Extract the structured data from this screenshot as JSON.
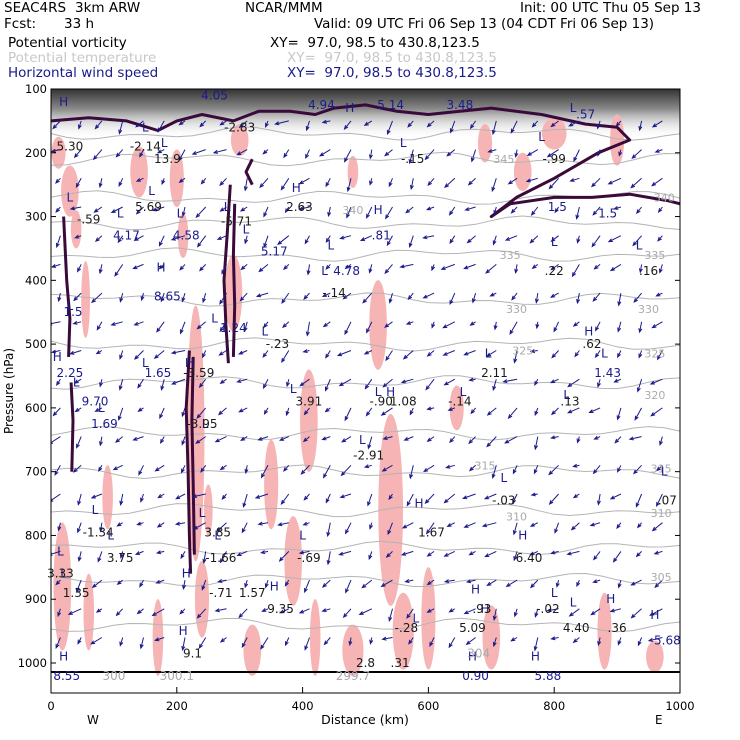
{
  "header": {
    "project": "SEAC4RS",
    "model": "3km ARW",
    "org": "NCAR/MMM",
    "init": "Init: 00 UTC Thu 05 Sep 13",
    "fcst_label": "Fcst:",
    "fcst_value": "33 h",
    "valid": "Valid: 09 UTC Fri 06 Sep 13 (04 CDT Fri 06 Sep 13)"
  },
  "fields": [
    {
      "name": "Potential vorticity",
      "xy": "XY=  97.0, 98.5 to 430.8,123.5",
      "color": "#000000"
    },
    {
      "name": "Potential temperature",
      "xy": "XY=  97.0, 98.5 to 430.8,123.5",
      "color": "#c8c8c8"
    },
    {
      "name": "Horizontal wind speed",
      "xy": "XY=  97.0, 98.5 to 430.8,123.5",
      "color": "#1a1a8c"
    }
  ],
  "chart_data": {
    "type": "cross-section",
    "xlabel": "Distance (km)",
    "ylabel": "Pressure (hPa)",
    "xlim": [
      0,
      1000
    ],
    "ylim": [
      1010,
      100
    ],
    "x_ticks": [
      "0",
      "200",
      "400",
      "600",
      "800",
      "1000"
    ],
    "y_ticks": [
      "100",
      "200",
      "300",
      "400",
      "500",
      "600",
      "700",
      "800",
      "900",
      "1000"
    ],
    "x_endpoints": {
      "left": "W",
      "right": "E"
    },
    "theta_labels": [
      {
        "text": "340",
        "x": 480,
        "p": 290
      },
      {
        "text": "335",
        "x": 730,
        "p": 360
      },
      {
        "text": "335",
        "x": 960,
        "p": 360
      },
      {
        "text": "330",
        "x": 740,
        "p": 445
      },
      {
        "text": "330",
        "x": 950,
        "p": 445
      },
      {
        "text": "325",
        "x": 750,
        "p": 510
      },
      {
        "text": "325",
        "x": 960,
        "p": 515
      },
      {
        "text": "320",
        "x": 960,
        "p": 580
      },
      {
        "text": "315",
        "x": 690,
        "p": 690
      },
      {
        "text": "315",
        "x": 970,
        "p": 695
      },
      {
        "text": "310",
        "x": 740,
        "p": 770
      },
      {
        "text": "310",
        "x": 970,
        "p": 765
      },
      {
        "text": "305",
        "x": 970,
        "p": 865
      },
      {
        "text": "345",
        "x": 720,
        "p": 210
      },
      {
        "text": "340",
        "x": 975,
        "p": 270
      }
    ],
    "hl_markers": [
      {
        "t": "H",
        "x": 20,
        "p": 120
      },
      {
        "t": "L",
        "x": 150,
        "p": 160
      },
      {
        "t": "L",
        "x": 180,
        "p": 185
      },
      {
        "t": "H",
        "x": 475,
        "p": 130
      },
      {
        "t": "L",
        "x": 560,
        "p": 185
      },
      {
        "t": "L",
        "x": 780,
        "p": 175
      },
      {
        "t": "L",
        "x": 830,
        "p": 130
      },
      {
        "t": "L",
        "x": 160,
        "p": 260
      },
      {
        "t": "L",
        "x": 30,
        "p": 270
      },
      {
        "t": "L",
        "x": 110,
        "p": 295
      },
      {
        "t": "L",
        "x": 205,
        "p": 295
      },
      {
        "t": "L",
        "x": 280,
        "p": 285
      },
      {
        "t": "H",
        "x": 390,
        "p": 255
      },
      {
        "t": "L",
        "x": 310,
        "p": 320
      },
      {
        "t": "H",
        "x": 520,
        "p": 290
      },
      {
        "t": "L",
        "x": 445,
        "p": 345
      },
      {
        "t": "L",
        "x": 435,
        "p": 385
      },
      {
        "t": "H",
        "x": 175,
        "p": 380
      },
      {
        "t": "L",
        "x": 30,
        "p": 440
      },
      {
        "t": "L",
        "x": 260,
        "p": 460
      },
      {
        "t": "L",
        "x": 340,
        "p": 480
      },
      {
        "t": "L",
        "x": 800,
        "p": 340
      },
      {
        "t": "L",
        "x": 935,
        "p": 345
      },
      {
        "t": "H",
        "x": 855,
        "p": 480
      },
      {
        "t": "L",
        "x": 880,
        "p": 515
      },
      {
        "t": "H",
        "x": 10,
        "p": 520
      },
      {
        "t": "L",
        "x": 150,
        "p": 530
      },
      {
        "t": "H",
        "x": 220,
        "p": 530
      },
      {
        "t": "L",
        "x": 40,
        "p": 560
      },
      {
        "t": "L",
        "x": 80,
        "p": 600
      },
      {
        "t": "L",
        "x": 385,
        "p": 570
      },
      {
        "t": "L",
        "x": 520,
        "p": 575
      },
      {
        "t": "H",
        "x": 540,
        "p": 575
      },
      {
        "t": "L",
        "x": 655,
        "p": 575
      },
      {
        "t": "L",
        "x": 695,
        "p": 515
      },
      {
        "t": "L",
        "x": 820,
        "p": 580
      },
      {
        "t": "L",
        "x": 245,
        "p": 625
      },
      {
        "t": "L",
        "x": 495,
        "p": 650
      },
      {
        "t": "L",
        "x": 720,
        "p": 710
      },
      {
        "t": "L",
        "x": 975,
        "p": 700
      },
      {
        "t": "L",
        "x": 70,
        "p": 760
      },
      {
        "t": "L",
        "x": 95,
        "p": 800
      },
      {
        "t": "L",
        "x": 240,
        "p": 765
      },
      {
        "t": "L",
        "x": 265,
        "p": 800
      },
      {
        "t": "L",
        "x": 400,
        "p": 800
      },
      {
        "t": "H",
        "x": 585,
        "p": 750
      },
      {
        "t": "H",
        "x": 750,
        "p": 800
      },
      {
        "t": "L",
        "x": 15,
        "p": 825
      },
      {
        "t": "L",
        "x": 20,
        "p": 860
      },
      {
        "t": "H",
        "x": 215,
        "p": 860
      },
      {
        "t": "H",
        "x": 355,
        "p": 880
      },
      {
        "t": "H",
        "x": 675,
        "p": 885
      },
      {
        "t": "H",
        "x": 690,
        "p": 915
      },
      {
        "t": "L",
        "x": 800,
        "p": 890
      },
      {
        "t": "L",
        "x": 830,
        "p": 905
      },
      {
        "t": "H",
        "x": 890,
        "p": 900
      },
      {
        "t": "H",
        "x": 960,
        "p": 925
      },
      {
        "t": "H",
        "x": 210,
        "p": 950
      },
      {
        "t": "L",
        "x": 580,
        "p": 930
      },
      {
        "t": "H",
        "x": 20,
        "p": 990
      },
      {
        "t": "H",
        "x": 670,
        "p": 990
      },
      {
        "t": "H",
        "x": 770,
        "p": 990
      }
    ],
    "value_labels": [
      {
        "t": "4.05",
        "x": 260,
        "p": 110,
        "c": "navy"
      },
      {
        "t": "4.94",
        "x": 430,
        "p": 125,
        "c": "navy"
      },
      {
        "t": "5.14",
        "x": 540,
        "p": 125,
        "c": "navy"
      },
      {
        "t": "3.48",
        "x": 650,
        "p": 125,
        "c": "navy"
      },
      {
        "t": ".57",
        "x": 850,
        "p": 140,
        "c": "navy"
      },
      {
        "t": "-2.83",
        "x": 300,
        "p": 160,
        "c": "black"
      },
      {
        "t": "5.30",
        "x": 30,
        "p": 190,
        "c": "black"
      },
      {
        "t": "-2.14",
        "x": 150,
        "p": 190,
        "c": "black"
      },
      {
        "t": "13.9",
        "x": 185,
        "p": 210,
        "c": "black"
      },
      {
        "t": "-.15",
        "x": 575,
        "p": 210,
        "c": "black"
      },
      {
        "t": "-.99",
        "x": 800,
        "p": 210,
        "c": "black"
      },
      {
        "t": "5.69",
        "x": 155,
        "p": 285,
        "c": "black"
      },
      {
        "t": "2.63",
        "x": 395,
        "p": 285,
        "c": "black"
      },
      {
        "t": "1.5",
        "x": 805,
        "p": 285,
        "c": "navy"
      },
      {
        "t": "1.5",
        "x": 885,
        "p": 295,
        "c": "navy"
      },
      {
        "t": "-.59",
        "x": 60,
        "p": 305,
        "c": "black"
      },
      {
        "t": "-5.71",
        "x": 295,
        "p": 308,
        "c": "black"
      },
      {
        "t": "4.17",
        "x": 120,
        "p": 330,
        "c": "navy"
      },
      {
        "t": "4.58",
        "x": 215,
        "p": 330,
        "c": "navy"
      },
      {
        "t": ".81",
        "x": 525,
        "p": 330,
        "c": "navy"
      },
      {
        "t": "5.17",
        "x": 355,
        "p": 355,
        "c": "navy"
      },
      {
        "t": "4.78",
        "x": 470,
        "p": 385,
        "c": "navy"
      },
      {
        "t": ".22",
        "x": 800,
        "p": 385,
        "c": "black"
      },
      {
        "t": ".16",
        "x": 950,
        "p": 385,
        "c": "black"
      },
      {
        "t": "-.14",
        "x": 450,
        "p": 420,
        "c": "black"
      },
      {
        "t": "8.65",
        "x": 185,
        "p": 425,
        "c": "navy"
      },
      {
        "t": "1.5",
        "x": 35,
        "p": 450,
        "c": "navy"
      },
      {
        "t": "1.24",
        "x": 290,
        "p": 475,
        "c": "navy"
      },
      {
        "t": "-.23",
        "x": 360,
        "p": 500,
        "c": "black"
      },
      {
        "t": ".62",
        "x": 860,
        "p": 500,
        "c": "black"
      },
      {
        "t": "2.25",
        "x": 30,
        "p": 545,
        "c": "navy"
      },
      {
        "t": "1.65",
        "x": 170,
        "p": 545,
        "c": "navy"
      },
      {
        "t": "-3.59",
        "x": 235,
        "p": 545,
        "c": "black"
      },
      {
        "t": "2.11",
        "x": 705,
        "p": 545,
        "c": "black"
      },
      {
        "t": "1.43",
        "x": 885,
        "p": 545,
        "c": "navy"
      },
      {
        "t": "9.70",
        "x": 70,
        "p": 590,
        "c": "navy"
      },
      {
        "t": "3.91",
        "x": 410,
        "p": 590,
        "c": "black"
      },
      {
        "t": "-.90",
        "x": 525,
        "p": 590,
        "c": "black"
      },
      {
        "t": "1.08",
        "x": 560,
        "p": 590,
        "c": "black"
      },
      {
        "t": "-.14",
        "x": 650,
        "p": 590,
        "c": "black"
      },
      {
        "t": ".13",
        "x": 825,
        "p": 590,
        "c": "black"
      },
      {
        "t": "1.69",
        "x": 85,
        "p": 625,
        "c": "navy"
      },
      {
        "t": "-3.95",
        "x": 240,
        "p": 625,
        "c": "black"
      },
      {
        "t": "-2.91",
        "x": 505,
        "p": 675,
        "c": "black"
      },
      {
        "t": "-.03",
        "x": 720,
        "p": 745,
        "c": "black"
      },
      {
        "t": ".07",
        "x": 980,
        "p": 745,
        "c": "black"
      },
      {
        "t": "-1.34",
        "x": 75,
        "p": 795,
        "c": "black"
      },
      {
        "t": "3.85",
        "x": 265,
        "p": 795,
        "c": "black"
      },
      {
        "t": "1.67",
        "x": 605,
        "p": 795,
        "c": "black"
      },
      {
        "t": "3.75",
        "x": 110,
        "p": 835,
        "c": "black"
      },
      {
        "t": "-1.66",
        "x": 270,
        "p": 835,
        "c": "black"
      },
      {
        "t": "-.69",
        "x": 410,
        "p": 835,
        "c": "black"
      },
      {
        "t": "6.40",
        "x": 760,
        "p": 835,
        "c": "black"
      },
      {
        "t": "3.33",
        "x": 15,
        "p": 860,
        "c": "black"
      },
      {
        "t": "1.35",
        "x": 40,
        "p": 890,
        "c": "black"
      },
      {
        "t": "-.71",
        "x": 270,
        "p": 890,
        "c": "black"
      },
      {
        "t": "1.57",
        "x": 320,
        "p": 890,
        "c": "black"
      },
      {
        "t": "9.35",
        "x": 365,
        "p": 915,
        "c": "black"
      },
      {
        "t": ".93",
        "x": 685,
        "p": 915,
        "c": "black"
      },
      {
        "t": "-.02",
        "x": 790,
        "p": 915,
        "c": "black"
      },
      {
        "t": "-.28",
        "x": 565,
        "p": 945,
        "c": "black"
      },
      {
        "t": "5.09",
        "x": 670,
        "p": 945,
        "c": "black"
      },
      {
        "t": "4.40",
        "x": 835,
        "p": 945,
        "c": "black"
      },
      {
        "t": ".36",
        "x": 900,
        "p": 945,
        "c": "black"
      },
      {
        "t": "5.68",
        "x": 980,
        "p": 965,
        "c": "navy"
      },
      {
        "t": "9.1",
        "x": 225,
        "p": 985,
        "c": "black"
      },
      {
        "t": "304",
        "x": 680,
        "p": 985,
        "c": "grey"
      },
      {
        "t": "2.8",
        "x": 500,
        "p": 1000,
        "c": "black"
      },
      {
        "t": ".31",
        "x": 555,
        "p": 1000,
        "c": "black"
      },
      {
        "t": "8.55",
        "x": 25,
        "p": 1020,
        "c": "navy"
      },
      {
        "t": "300",
        "x": 100,
        "p": 1020,
        "c": "grey"
      },
      {
        "t": "300.1",
        "x": 200,
        "p": 1020,
        "c": "grey"
      },
      {
        "t": "299.7",
        "x": 480,
        "p": 1020,
        "c": "grey"
      },
      {
        "t": "0.90",
        "x": 675,
        "p": 1020,
        "c": "navy"
      },
      {
        "t": "5.88",
        "x": 790,
        "p": 1020,
        "c": "navy"
      }
    ]
  },
  "colors": {
    "pv_fill": "#f6b4b4",
    "pv_contour": "#3a0a3a",
    "wind_vector": "#1a1a8c",
    "theta_contour": "#b4b4b4"
  }
}
